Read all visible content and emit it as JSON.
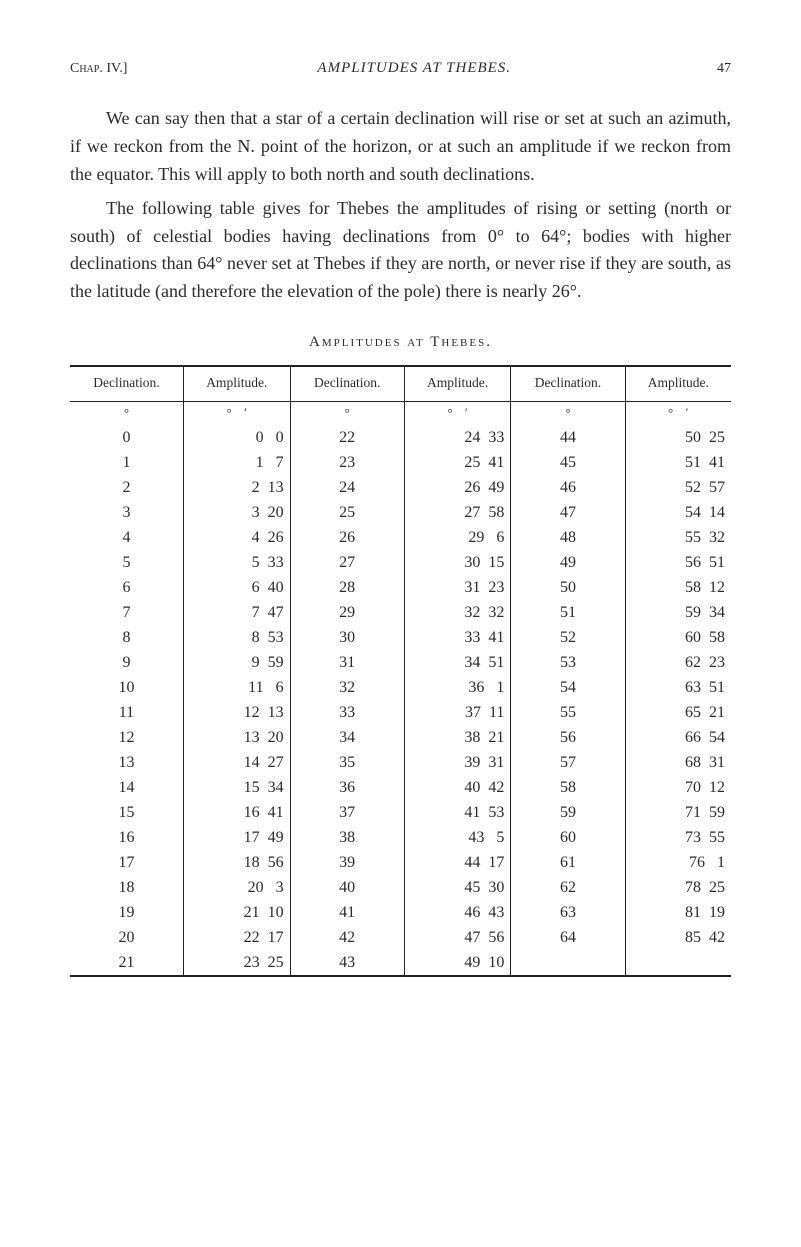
{
  "header": {
    "chap": "Chap. IV.]",
    "title": "AMPLITUDES AT THEBES.",
    "page": "47"
  },
  "paragraphs": {
    "p1": "We can say then that a star of a certain declination will rise or set at such an azimuth, if we reckon from the N. point of the horizon, or at such an amplitude if we reckon from the equator. This will apply to both north and south declinations.",
    "p2": "The following table gives for Thebes the amplitudes of rising or setting (north or south) of celestial bodies having declinations from 0° to 64°; bodies with higher declinations than 64° never set at Thebes if they are north, or never rise if they are south, as the latitude (and therefore the elevation of the pole) there is nearly 26°."
  },
  "table": {
    "caption": "Amplitudes at Thebes.",
    "columns": [
      "Declination.",
      "Amplitude.",
      "Declination.",
      "Amplitude.",
      "Declination.",
      "Amplitude."
    ],
    "unit_row": [
      "°",
      "°    ′",
      "°",
      "°    ′",
      "°",
      "°    ′"
    ],
    "rows": [
      [
        "0",
        "0   0",
        "22",
        "24  33",
        "44",
        "50  25"
      ],
      [
        "1",
        "1   7",
        "23",
        "25  41",
        "45",
        "51  41"
      ],
      [
        "2",
        "2  13",
        "24",
        "26  49",
        "46",
        "52  57"
      ],
      [
        "3",
        "3  20",
        "25",
        "27  58",
        "47",
        "54  14"
      ],
      [
        "4",
        "4  26",
        "26",
        "29   6",
        "48",
        "55  32"
      ],
      [
        "5",
        "5  33",
        "27",
        "30  15",
        "49",
        "56  51"
      ],
      [
        "6",
        "6  40",
        "28",
        "31  23",
        "50",
        "58  12"
      ],
      [
        "7",
        "7  47",
        "29",
        "32  32",
        "51",
        "59  34"
      ],
      [
        "8",
        "8  53",
        "30",
        "33  41",
        "52",
        "60  58"
      ],
      [
        "9",
        "9  59",
        "31",
        "34  51",
        "53",
        "62  23"
      ],
      [
        "10",
        "11   6",
        "32",
        "36   1",
        "54",
        "63  51"
      ],
      [
        "11",
        "12  13",
        "33",
        "37  11",
        "55",
        "65  21"
      ],
      [
        "12",
        "13  20",
        "34",
        "38  21",
        "56",
        "66  54"
      ],
      [
        "13",
        "14  27",
        "35",
        "39  31",
        "57",
        "68  31"
      ],
      [
        "14",
        "15  34",
        "36",
        "40  42",
        "58",
        "70  12"
      ],
      [
        "15",
        "16  41",
        "37",
        "41  53",
        "59",
        "71  59"
      ],
      [
        "16",
        "17  49",
        "38",
        "43   5",
        "60",
        "73  55"
      ],
      [
        "17",
        "18  56",
        "39",
        "44  17",
        "61",
        "76   1"
      ],
      [
        "18",
        "20   3",
        "40",
        "45  30",
        "62",
        "78  25"
      ],
      [
        "19",
        "21  10",
        "41",
        "46  43",
        "63",
        "81  19"
      ],
      [
        "20",
        "22  17",
        "42",
        "47  56",
        "64",
        "85  42"
      ],
      [
        "21",
        "23  25",
        "43",
        "49  10",
        "",
        ""
      ]
    ]
  }
}
